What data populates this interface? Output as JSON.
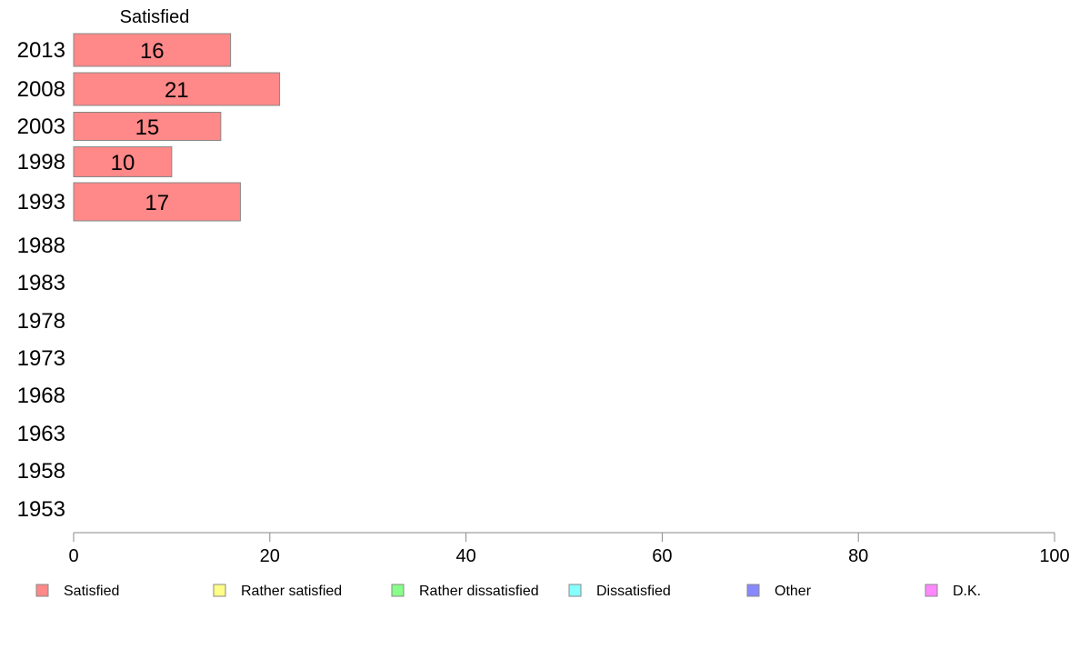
{
  "chart_data": {
    "type": "bar",
    "orientation": "horizontal",
    "stacked": true,
    "categories": [
      "2013",
      "2008",
      "2003",
      "1998",
      "1993",
      "1988",
      "1983",
      "1978",
      "1973",
      "1968",
      "1963",
      "1958",
      "1953"
    ],
    "series": [
      {
        "name": "Satisfied",
        "color": "#ff8888",
        "values": [
          16,
          21,
          15,
          10,
          17,
          null,
          null,
          null,
          null,
          null,
          null,
          null,
          null
        ]
      },
      {
        "name": "Rather satisfied",
        "color": "#ffff88",
        "values": [
          null,
          null,
          null,
          null,
          null,
          null,
          null,
          null,
          null,
          null,
          null,
          null,
          null
        ]
      },
      {
        "name": "Rather dissatisfied",
        "color": "#88ff88",
        "values": [
          null,
          null,
          null,
          null,
          null,
          null,
          null,
          null,
          null,
          null,
          null,
          null,
          null
        ]
      },
      {
        "name": "Dissatisfied",
        "color": "#88ffff",
        "values": [
          null,
          null,
          null,
          null,
          null,
          null,
          null,
          null,
          null,
          null,
          null,
          null,
          null
        ]
      },
      {
        "name": "Other",
        "color": "#8888ff",
        "values": [
          null,
          null,
          null,
          null,
          null,
          null,
          null,
          null,
          null,
          null,
          null,
          null,
          null
        ]
      },
      {
        "name": "D.K.",
        "color": "#ff88ff",
        "values": [
          null,
          null,
          null,
          null,
          null,
          null,
          null,
          null,
          null,
          null,
          null,
          null,
          null
        ]
      }
    ],
    "header_label": "Satisfied",
    "xlim": [
      0,
      100
    ],
    "xticks": [
      0,
      20,
      40,
      60,
      80,
      100
    ],
    "grid": false,
    "legend_position": "bottom"
  }
}
